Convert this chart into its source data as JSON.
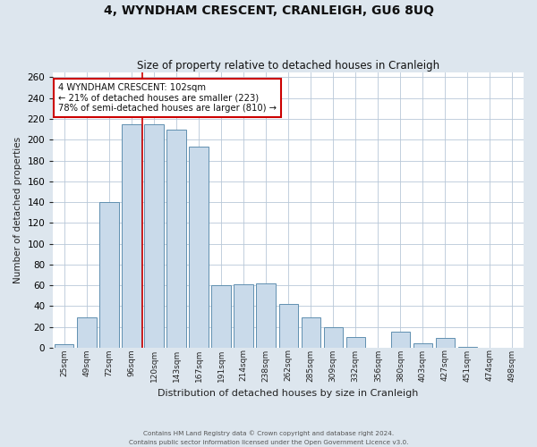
{
  "title": "4, WYNDHAM CRESCENT, CRANLEIGH, GU6 8UQ",
  "subtitle": "Size of property relative to detached houses in Cranleigh",
  "xlabel": "Distribution of detached houses by size in Cranleigh",
  "ylabel": "Number of detached properties",
  "bar_labels": [
    "25sqm",
    "49sqm",
    "72sqm",
    "96sqm",
    "120sqm",
    "143sqm",
    "167sqm",
    "191sqm",
    "214sqm",
    "238sqm",
    "262sqm",
    "285sqm",
    "309sqm",
    "332sqm",
    "356sqm",
    "380sqm",
    "403sqm",
    "427sqm",
    "451sqm",
    "474sqm",
    "498sqm"
  ],
  "bar_heights": [
    3,
    29,
    140,
    215,
    215,
    210,
    193,
    60,
    61,
    62,
    42,
    29,
    20,
    10,
    0,
    15,
    4,
    9,
    1,
    0,
    0
  ],
  "bar_color": "#c9daea",
  "bar_edge_color": "#6090b0",
  "vline_color": "#cc0000",
  "annotation_title": "4 WYNDHAM CRESCENT: 102sqm",
  "annotation_line1": "← 21% of detached houses are smaller (223)",
  "annotation_line2": "78% of semi-detached houses are larger (810) →",
  "annotation_box_color": "#ffffff",
  "annotation_border_color": "#cc0000",
  "ylim": [
    0,
    265
  ],
  "yticks": [
    0,
    20,
    40,
    60,
    80,
    100,
    120,
    140,
    160,
    180,
    200,
    220,
    240,
    260
  ],
  "footer1": "Contains HM Land Registry data © Crown copyright and database right 2024.",
  "footer2": "Contains public sector information licensed under the Open Government Licence v3.0.",
  "bg_color": "#dde6ee",
  "plot_bg_color": "#ffffff"
}
